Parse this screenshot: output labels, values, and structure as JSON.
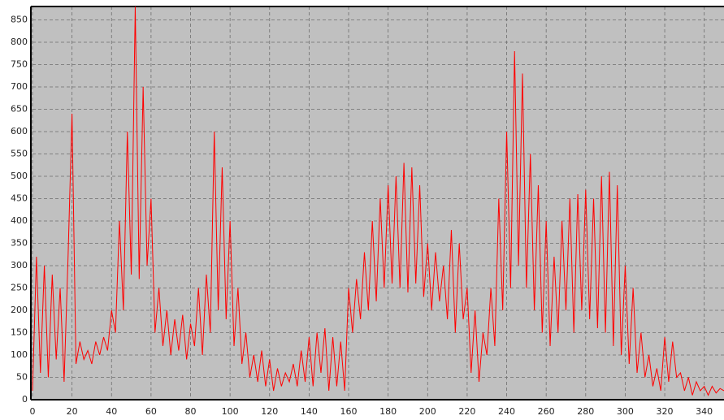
{
  "chart_data": {
    "type": "line",
    "x": [
      0,
      2,
      4,
      6,
      8,
      10,
      12,
      14,
      16,
      18,
      20,
      22,
      24,
      26,
      28,
      30,
      32,
      34,
      36,
      38,
      40,
      42,
      44,
      46,
      48,
      50,
      52,
      54,
      56,
      58,
      60,
      62,
      64,
      66,
      68,
      70,
      72,
      74,
      76,
      78,
      80,
      82,
      84,
      86,
      88,
      90,
      92,
      94,
      96,
      98,
      100,
      102,
      104,
      106,
      108,
      110,
      112,
      114,
      116,
      118,
      120,
      122,
      124,
      126,
      128,
      130,
      132,
      134,
      136,
      138,
      140,
      142,
      144,
      146,
      148,
      150,
      152,
      154,
      156,
      158,
      160,
      162,
      164,
      166,
      168,
      170,
      172,
      174,
      176,
      178,
      180,
      182,
      184,
      186,
      188,
      190,
      192,
      194,
      196,
      198,
      200,
      202,
      204,
      206,
      208,
      210,
      212,
      214,
      216,
      218,
      220,
      222,
      224,
      226,
      228,
      230,
      232,
      234,
      236,
      238,
      240,
      242,
      244,
      246,
      248,
      250,
      252,
      254,
      256,
      258,
      260,
      262,
      264,
      266,
      268,
      270,
      272,
      274,
      276,
      278,
      280,
      282,
      284,
      286,
      288,
      290,
      292,
      294,
      296,
      298,
      300,
      302,
      304,
      306,
      308,
      310,
      312,
      314,
      316,
      318,
      320,
      322,
      324,
      326,
      328,
      330,
      332,
      334,
      336,
      338,
      340,
      342,
      344,
      346,
      348,
      350
    ],
    "series": [
      {
        "color": "#ff0000",
        "values": [
          20,
          320,
          60,
          300,
          50,
          280,
          90,
          250,
          40,
          320,
          640,
          80,
          130,
          90,
          110,
          80,
          130,
          100,
          140,
          110,
          200,
          150,
          400,
          200,
          600,
          280,
          880,
          270,
          700,
          300,
          450,
          150,
          250,
          120,
          200,
          100,
          180,
          110,
          190,
          90,
          170,
          120,
          250,
          100,
          280,
          150,
          600,
          200,
          520,
          180,
          400,
          120,
          250,
          80,
          150,
          50,
          100,
          40,
          110,
          30,
          90,
          20,
          70,
          30,
          60,
          40,
          80,
          30,
          110,
          40,
          140,
          30,
          150,
          60,
          160,
          20,
          140,
          30,
          130,
          20,
          250,
          150,
          270,
          180,
          330,
          200,
          400,
          220,
          450,
          250,
          480,
          260,
          500,
          250,
          530,
          240,
          520,
          260,
          480,
          230,
          350,
          200,
          330,
          220,
          300,
          180,
          380,
          150,
          350,
          180,
          250,
          60,
          200,
          40,
          150,
          100,
          250,
          120,
          450,
          200,
          600,
          250,
          780,
          300,
          730,
          250,
          550,
          200,
          480,
          150,
          400,
          120,
          320,
          150,
          400,
          200,
          450,
          150,
          460,
          200,
          470,
          180,
          450,
          160,
          500,
          150,
          510,
          120,
          480,
          100,
          300,
          80,
          250,
          60,
          150,
          50,
          100,
          30,
          70,
          20,
          140,
          40,
          130,
          50,
          60,
          20,
          50,
          10,
          40,
          20,
          30,
          10,
          30,
          15,
          25,
          20
        ]
      }
    ],
    "xlim": [
      0,
      350
    ],
    "ylim": [
      0,
      880
    ],
    "xticks": [
      0,
      20,
      40,
      60,
      80,
      100,
      120,
      140,
      160,
      180,
      200,
      220,
      240,
      260,
      280,
      300,
      320,
      340
    ],
    "yticks": [
      0,
      50,
      100,
      150,
      200,
      250,
      300,
      350,
      400,
      450,
      500,
      550,
      600,
      650,
      700,
      750,
      800,
      850
    ],
    "grid": true
  }
}
